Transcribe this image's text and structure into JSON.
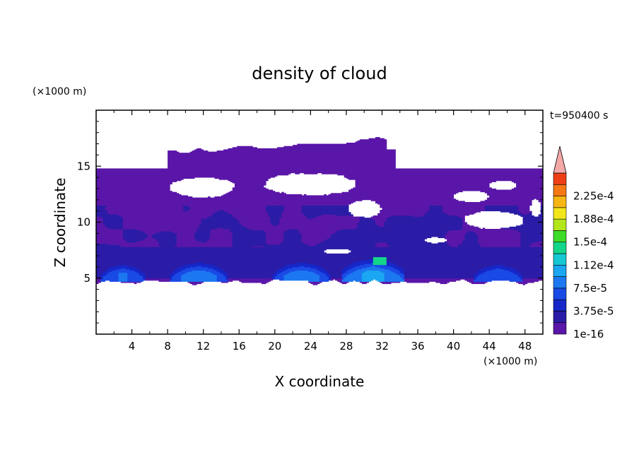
{
  "chart_data": {
    "type": "heatmap",
    "title": "density of cloud",
    "xlabel": "X coordinate",
    "ylabel": "Z coordinate",
    "x_unit": "(×1000 m)",
    "y_unit": "(×1000 m)",
    "time_label": "t=950400 s",
    "xlim": [
      0,
      50
    ],
    "ylim": [
      0,
      20
    ],
    "x_ticks": [
      4,
      8,
      12,
      16,
      20,
      24,
      28,
      32,
      36,
      40,
      44,
      48
    ],
    "y_ticks": [
      5,
      10,
      15
    ],
    "colorbar": {
      "levels": [
        1e-16,
        1.875e-05,
        3.75e-05,
        5.625e-05,
        7.5e-05,
        9.375e-05,
        0.0001125,
        0.00013125,
        0.00015,
        0.00016875,
        0.0001875,
        0.00020625,
        0.000225,
        0.00024375
      ],
      "colors": [
        "#5a16a8",
        "#2a1ca6",
        "#1626c8",
        "#1a4ae6",
        "#1c78f0",
        "#1aa6f0",
        "#16c8d2",
        "#14d68a",
        "#3cdc28",
        "#b4e61c",
        "#f2e61a",
        "#f6b614",
        "#f67814",
        "#ee3e16",
        "#f4a8a8"
      ],
      "labels": [
        "1e-16",
        "3.75e-5",
        "7.5e-5",
        "1.12e-4",
        "1.5e-4",
        "1.88e-4",
        "2.25e-4"
      ],
      "extend": "max"
    },
    "field_description_levels_by_region": [
      {
        "z_range": [
          4.5,
          14.8
        ],
        "x_range": [
          0,
          50
        ],
        "level": 0
      },
      {
        "z_range": [
          5,
          7.5
        ],
        "x_range": [
          0,
          50
        ],
        "level": 1
      },
      {
        "cells": [
          {
            "x": 3,
            "z": 5.6,
            "level": 5
          },
          {
            "x": 12,
            "z": 5.8,
            "level": 5
          },
          {
            "x": 23,
            "z": 5.8,
            "level": 5
          },
          {
            "x": 31,
            "z": 6,
            "level": 6
          },
          {
            "x": 45,
            "z": 5.6,
            "level": 5
          }
        ]
      }
    ]
  }
}
